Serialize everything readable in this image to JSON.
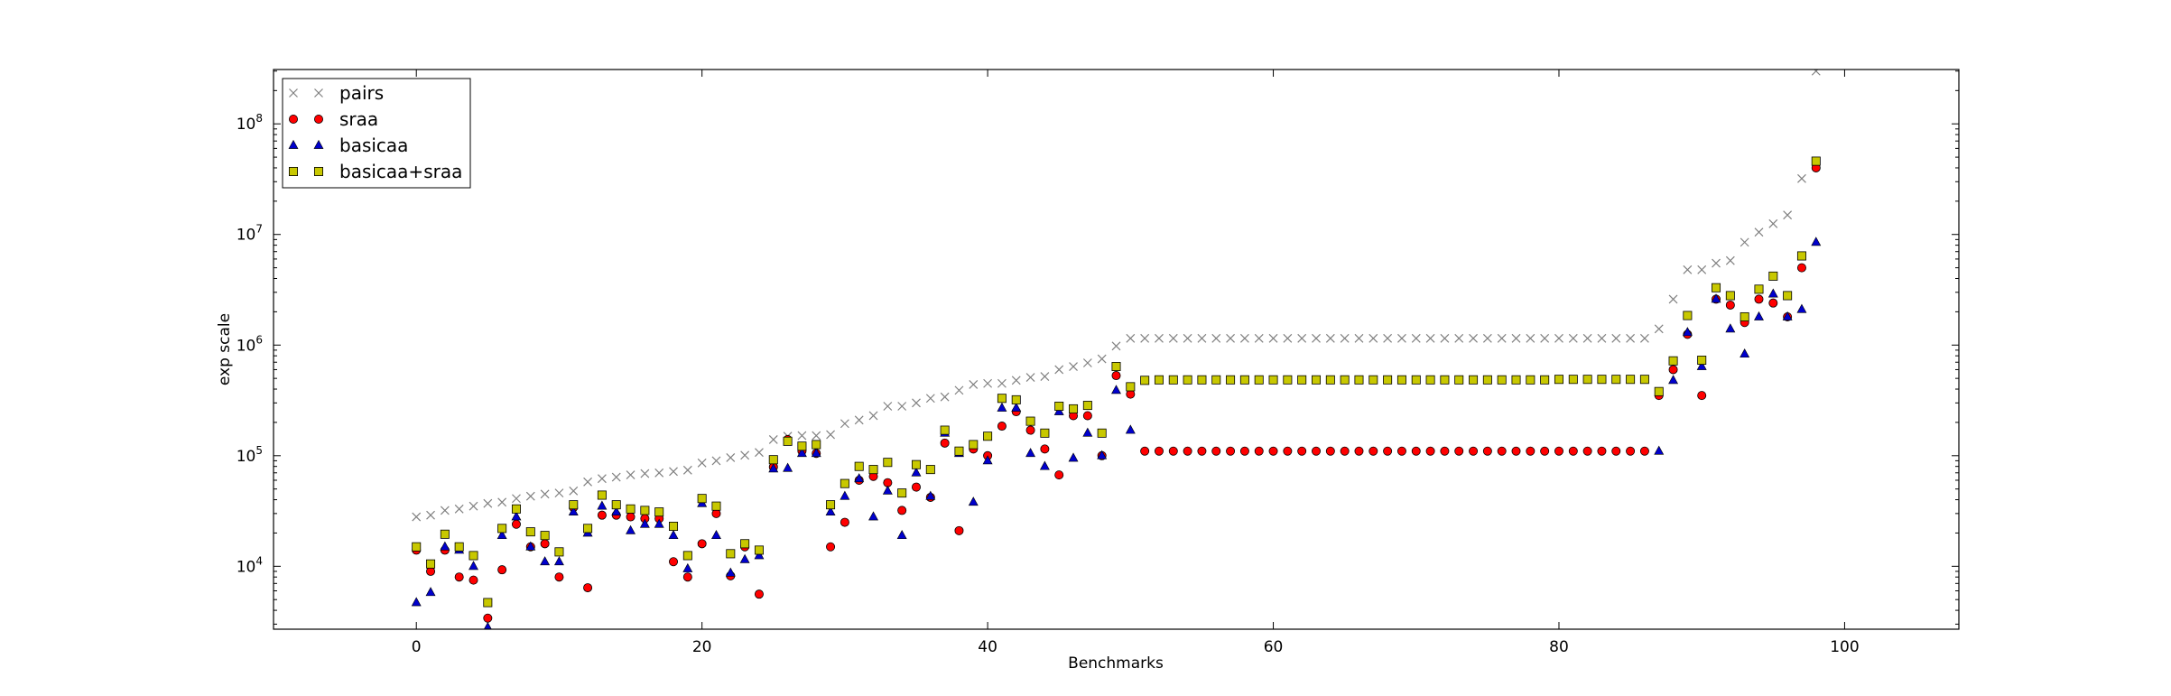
{
  "chart_data": {
    "type": "scatter",
    "title": "",
    "xlabel": "Benchmarks",
    "ylabel": "exp scale",
    "xlim": [
      -10,
      108
    ],
    "ylim": [
      2700,
      310000000
    ],
    "yscale": "log",
    "xticks": [
      0,
      20,
      40,
      60,
      80,
      100
    ],
    "yticks": [
      {
        "value": 10000,
        "base": "10",
        "exp": "4"
      },
      {
        "value": 100000,
        "base": "10",
        "exp": "5"
      },
      {
        "value": 1000000,
        "base": "10",
        "exp": "6"
      },
      {
        "value": 10000000,
        "base": "10",
        "exp": "7"
      },
      {
        "value": 100000000,
        "base": "10",
        "exp": "8"
      }
    ],
    "grid": false,
    "legend_position": "top-left",
    "series": [
      {
        "name": "pairs",
        "marker": "x",
        "color": "#808080",
        "values": [
          28000,
          29000,
          32000,
          33000,
          35000,
          37000,
          38000,
          41000,
          43000,
          45000,
          46000,
          48000,
          58000,
          62000,
          64000,
          67000,
          69000,
          70000,
          72000,
          74000,
          86000,
          90000,
          96000,
          101000,
          107000,
          140000,
          150000,
          152000,
          152000,
          155000,
          195000,
          210000,
          230000,
          280000,
          280000,
          300000,
          330000,
          340000,
          390000,
          440000,
          450000,
          450000,
          480000,
          510000,
          520000,
          600000,
          640000,
          690000,
          750000,
          980000,
          1150000,
          1150000,
          1150000,
          1150000,
          1150000,
          1150000,
          1150000,
          1150000,
          1150000,
          1150000,
          1150000,
          1150000,
          1150000,
          1150000,
          1150000,
          1150000,
          1150000,
          1150000,
          1150000,
          1150000,
          1150000,
          1150000,
          1150000,
          1150000,
          1150000,
          1150000,
          1150000,
          1150000,
          1150000,
          1150000,
          1150000,
          1150000,
          1150000,
          1150000,
          1150000,
          1150000,
          1150000,
          1400000,
          2600000,
          4800000,
          4800000,
          5500000,
          5800000,
          8500000,
          10500000,
          12500000,
          15000000,
          32000000,
          300000000
        ]
      },
      {
        "name": "sraa",
        "marker": "o",
        "color": "#ff0000",
        "values": [
          14000,
          9000,
          14000,
          8000,
          7500,
          3400,
          9300,
          24000,
          15000,
          16000,
          8000,
          34000,
          6400,
          29000,
          29000,
          28000,
          27000,
          27000,
          11000,
          8000,
          16000,
          30000,
          8200,
          15000,
          5600,
          79000,
          140000,
          110000,
          105000,
          15000,
          25000,
          60000,
          65000,
          57000,
          32000,
          52000,
          42000,
          130000,
          21000,
          115000,
          100000,
          185000,
          250000,
          170000,
          115000,
          67000,
          230000,
          230000,
          100000,
          530000,
          360000,
          110000,
          110000,
          110000,
          110000,
          110000,
          110000,
          110000,
          110000,
          110000,
          110000,
          110000,
          110000,
          110000,
          110000,
          110000,
          110000,
          110000,
          110000,
          110000,
          110000,
          110000,
          110000,
          110000,
          110000,
          110000,
          110000,
          110000,
          110000,
          110000,
          110000,
          110000,
          110000,
          110000,
          110000,
          110000,
          110000,
          350000,
          600000,
          1250000,
          350000,
          2600000,
          2300000,
          1600000,
          2600000,
          2400000,
          1800000,
          5000000,
          40000000
        ]
      },
      {
        "name": "basicaa",
        "marker": "^",
        "color": "#0000cc",
        "values": [
          4700,
          5800,
          15000,
          14000,
          10000,
          2800,
          19000,
          28000,
          15000,
          11000,
          11000,
          31000,
          20000,
          35000,
          31000,
          21000,
          24000,
          24000,
          19000,
          9500,
          37000,
          19000,
          8700,
          11500,
          12500,
          76000,
          77000,
          105000,
          105000,
          31000,
          43000,
          62000,
          28000,
          48000,
          19000,
          70000,
          43000,
          160000,
          105000,
          38000,
          90000,
          270000,
          270000,
          105000,
          80000,
          250000,
          95000,
          160000,
          100000,
          390000,
          170000,
          null,
          null,
          null,
          null,
          null,
          null,
          null,
          null,
          null,
          null,
          null,
          null,
          null,
          null,
          null,
          null,
          null,
          null,
          null,
          null,
          null,
          null,
          null,
          null,
          null,
          null,
          null,
          null,
          null,
          null,
          null,
          null,
          null,
          null,
          null,
          null,
          110000,
          480000,
          1300000,
          640000,
          2600000,
          1400000,
          830000,
          1800000,
          2900000,
          1800000,
          2100000,
          8500000
        ]
      },
      {
        "name": "basicaa+sraa",
        "marker": "s",
        "color": "#c8c800",
        "values": [
          15000,
          10500,
          19500,
          15000,
          12500,
          4700,
          22000,
          33000,
          20500,
          19000,
          13500,
          36000,
          22000,
          44000,
          36000,
          33000,
          32000,
          31000,
          23000,
          12500,
          41000,
          35000,
          13000,
          16000,
          14000,
          92000,
          135000,
          122000,
          126000,
          36000,
          56000,
          80000,
          75000,
          87000,
          46000,
          83000,
          75000,
          170000,
          110000,
          126000,
          150000,
          330000,
          320000,
          205000,
          160000,
          280000,
          265000,
          285000,
          160000,
          640000,
          420000,
          480000,
          485000,
          485000,
          485000,
          485000,
          485000,
          485000,
          485000,
          485000,
          485000,
          485000,
          485000,
          485000,
          485000,
          485000,
          485000,
          485000,
          485000,
          485000,
          485000,
          485000,
          485000,
          485000,
          485000,
          485000,
          485000,
          485000,
          485000,
          485000,
          490000,
          490000,
          490000,
          490000,
          490000,
          490000,
          490000,
          380000,
          720000,
          1850000,
          730000,
          3300000,
          2800000,
          1800000,
          3200000,
          4200000,
          2800000,
          6400000,
          46000000
        ]
      }
    ]
  }
}
